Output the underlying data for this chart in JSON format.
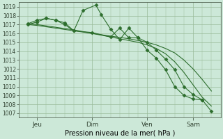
{
  "xlabel": "Pression niveau de la mer( hPa )",
  "bg_color": "#cce8d8",
  "grid_color": "#99bb99",
  "line_color": "#2d6e2d",
  "ylim": [
    1006.5,
    1019.5
  ],
  "yticks": [
    1007,
    1008,
    1009,
    1010,
    1011,
    1012,
    1013,
    1014,
    1015,
    1016,
    1017,
    1018,
    1019
  ],
  "xtick_labels": [
    "Jeu",
    "Dim",
    "Ven",
    "Sam"
  ],
  "xtick_positions": [
    1,
    4,
    7,
    9.5
  ],
  "xlim": [
    0,
    11.0
  ],
  "series": [
    {
      "x": [
        0.5,
        1.0,
        1.5,
        2.0,
        2.5,
        3.0,
        3.5,
        4.0,
        4.5,
        5.0,
        5.5,
        6.0,
        6.5,
        7.0,
        7.5,
        8.0,
        8.5,
        9.0,
        9.5,
        10.0,
        10.5
      ],
      "y": [
        1017.0,
        1016.9,
        1016.75,
        1016.6,
        1016.45,
        1016.3,
        1016.15,
        1016.0,
        1015.85,
        1015.7,
        1015.55,
        1015.4,
        1015.2,
        1015.0,
        1014.7,
        1014.3,
        1013.8,
        1013.0,
        1012.0,
        1010.8,
        1009.5
      ],
      "marker": null,
      "ms": 0
    },
    {
      "x": [
        0.5,
        1.0,
        1.5,
        2.0,
        2.5,
        3.0,
        3.5,
        4.0,
        4.5,
        5.0,
        5.5,
        6.0,
        6.5,
        7.0,
        7.5,
        8.0,
        8.5,
        9.0,
        9.5,
        10.0,
        10.5
      ],
      "y": [
        1017.1,
        1017.0,
        1016.85,
        1016.7,
        1016.55,
        1016.4,
        1016.2,
        1016.0,
        1015.8,
        1015.6,
        1015.4,
        1015.2,
        1015.0,
        1014.7,
        1014.3,
        1013.7,
        1012.8,
        1011.6,
        1010.2,
        1008.8,
        1007.8
      ],
      "marker": null,
      "ms": 0
    },
    {
      "x": [
        0.5,
        1.0,
        1.5,
        2.0,
        2.5,
        3.0,
        3.5,
        4.2,
        4.5,
        5.0,
        5.5,
        6.0,
        6.5,
        7.0,
        7.5,
        8.0,
        8.5,
        9.0,
        9.5,
        10.0,
        10.5
      ],
      "y": [
        1017.0,
        1017.3,
        1017.7,
        1017.5,
        1017.2,
        1016.3,
        1018.6,
        1019.2,
        1018.1,
        1016.5,
        1015.3,
        1016.6,
        1015.5,
        1014.1,
        1013.2,
        1011.9,
        1010.0,
        1009.0,
        1008.6,
        1008.5,
        1007.2
      ],
      "marker": "D",
      "ms": 2.5
    },
    {
      "x": [
        0.5,
        1.0,
        1.5,
        2.0,
        2.5,
        3.0,
        4.0,
        5.0,
        5.5,
        6.0,
        6.5,
        7.0,
        7.5,
        8.0,
        8.5,
        9.0,
        9.5,
        10.0
      ],
      "y": [
        1017.1,
        1017.5,
        1017.7,
        1017.5,
        1017.0,
        1016.3,
        1016.1,
        1015.6,
        1016.6,
        1015.5,
        1015.5,
        1015.0,
        1014.1,
        1013.1,
        1011.9,
        1010.0,
        1009.1,
        1008.5
      ],
      "marker": "D",
      "ms": 2.5
    }
  ]
}
